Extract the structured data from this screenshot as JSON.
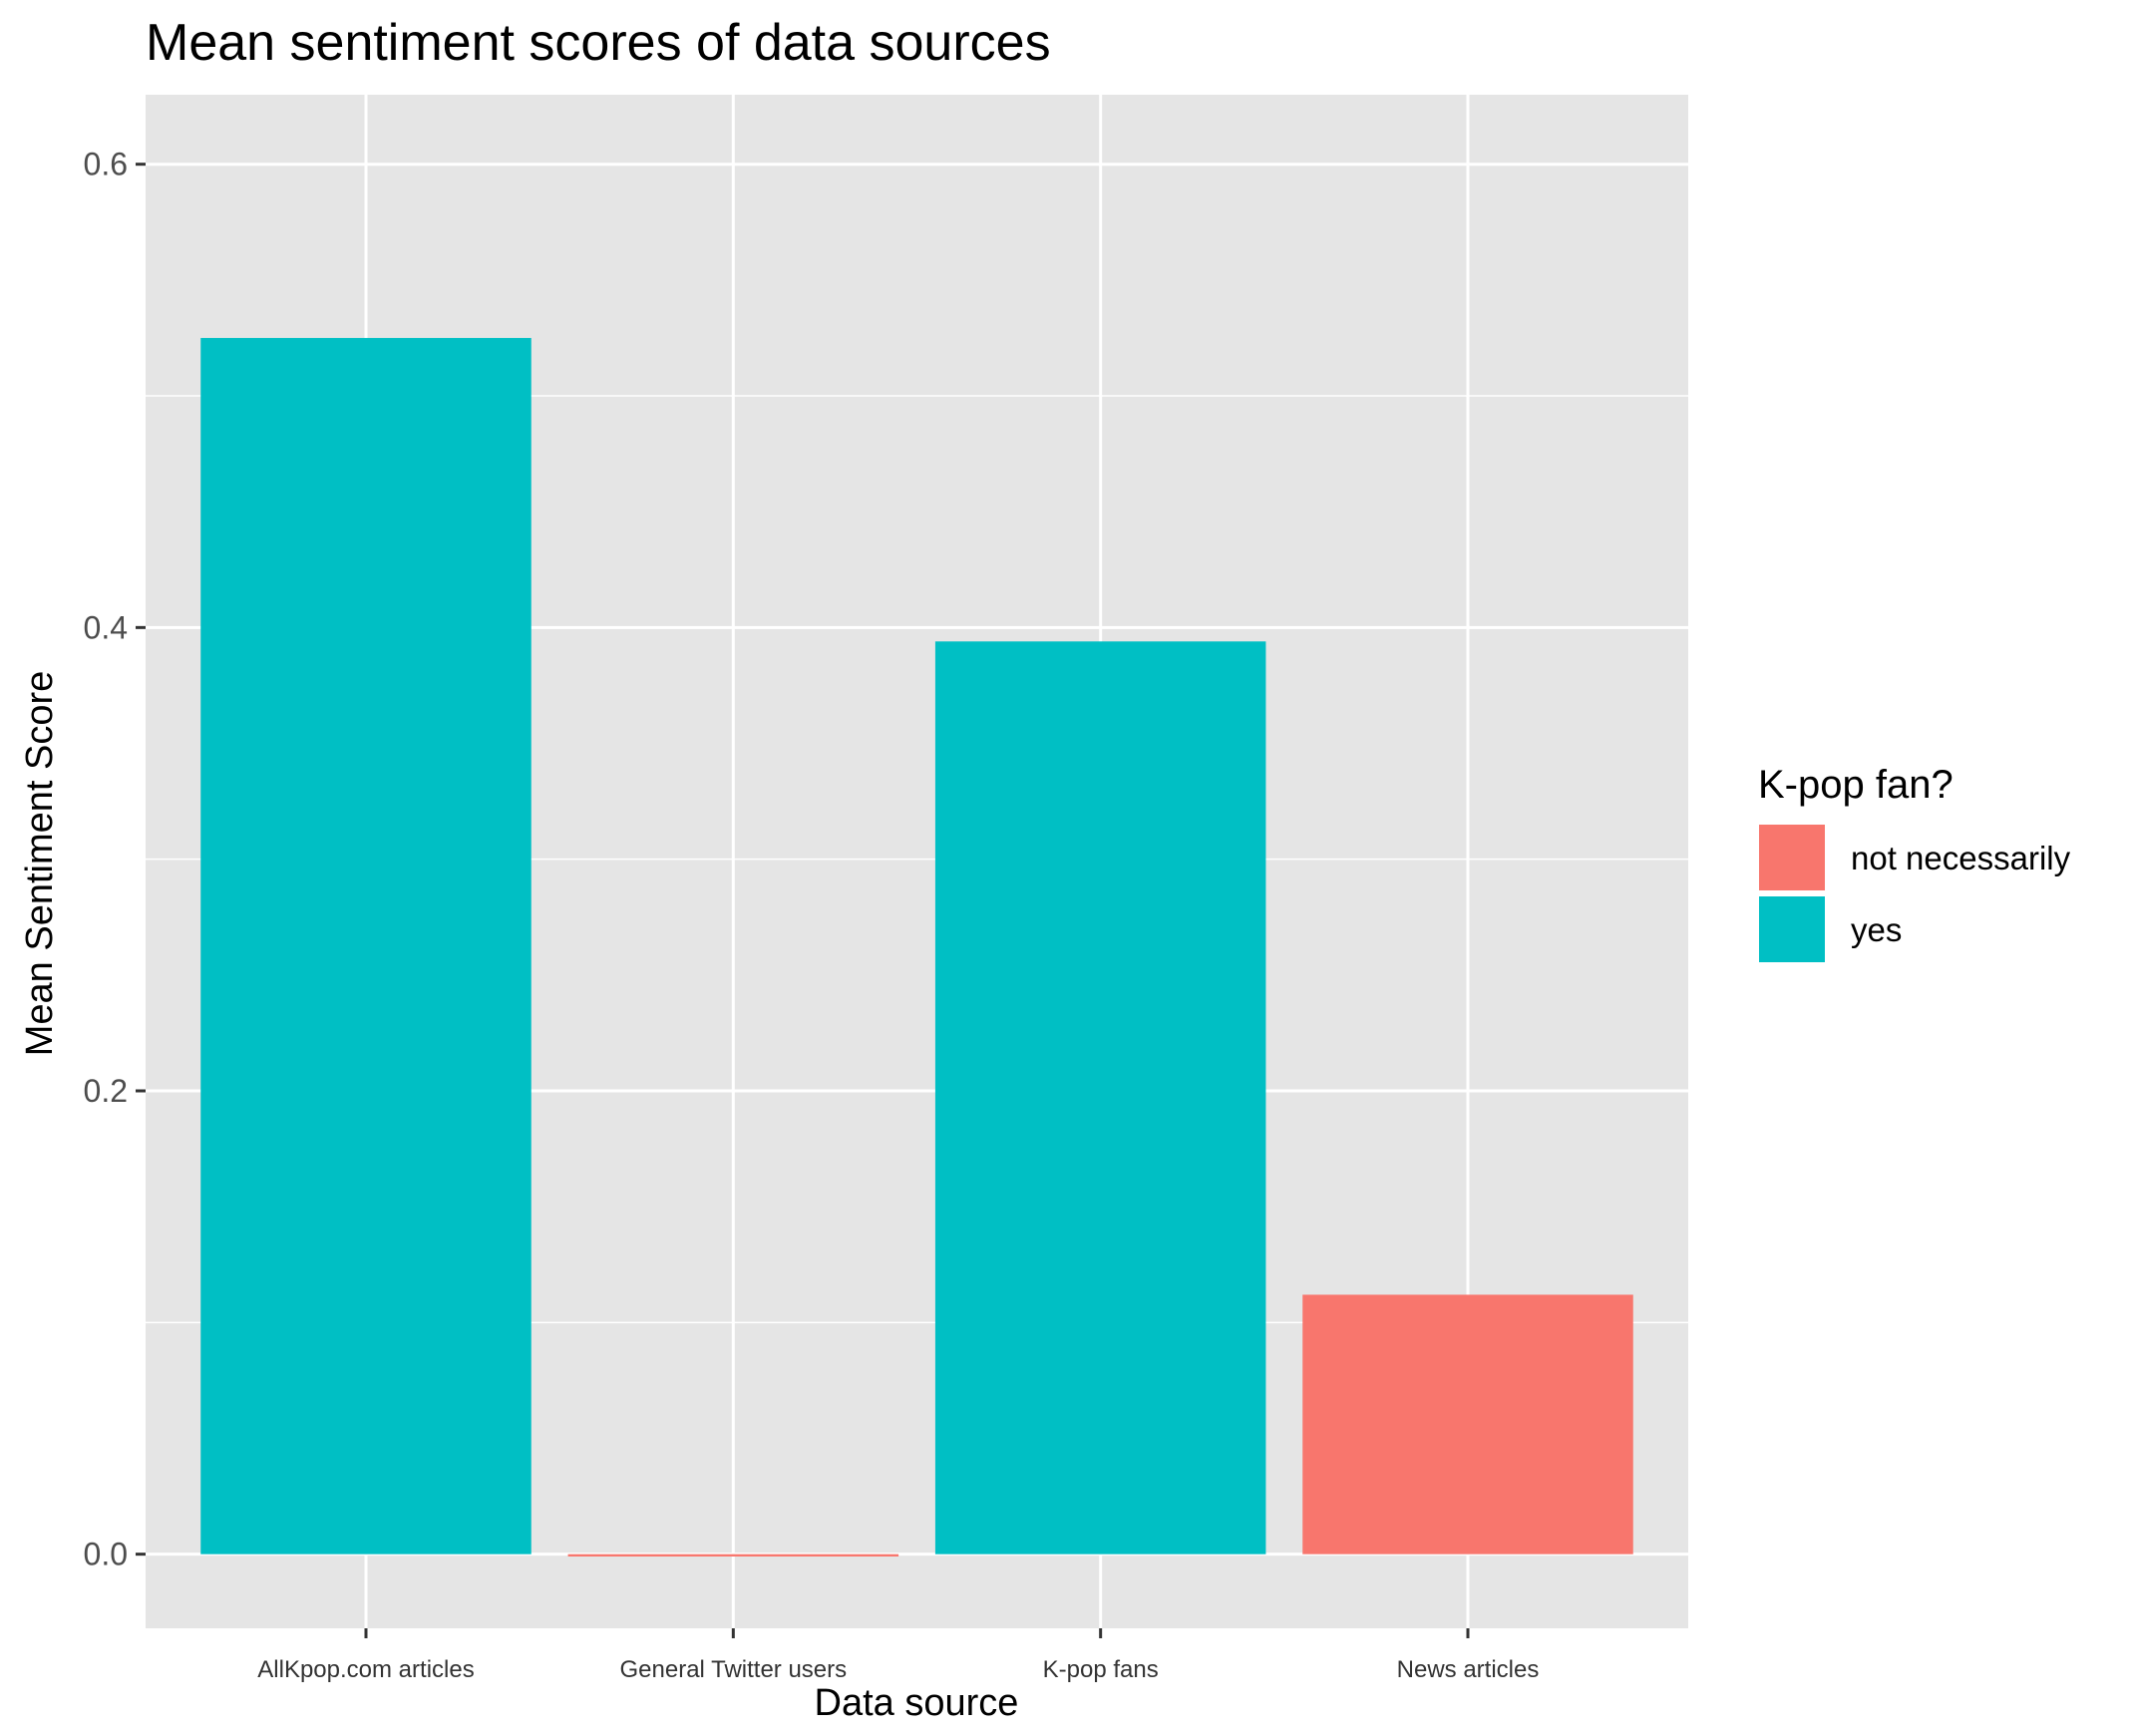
{
  "chart_data": {
    "type": "bar",
    "title": "Mean sentiment scores of data sources",
    "xlabel": "Data source",
    "ylabel": "Mean Sentiment Score",
    "categories": [
      "AllKpop.com articles",
      "General Twitter users",
      "K-pop fans",
      "News articles"
    ],
    "values": [
      0.525,
      -0.001,
      0.394,
      0.112
    ],
    "fill_group": [
      "yes",
      "not necessarily",
      "yes",
      "not necessarily"
    ],
    "ylim": [
      -0.032,
      0.63
    ],
    "y_ticks": [
      0.0,
      0.2,
      0.4,
      0.6
    ],
    "y_tick_labels": [
      "0.0",
      "0.2",
      "0.4",
      "0.6"
    ],
    "grid": true,
    "legend": {
      "title": "K-pop fan?",
      "position": "right",
      "entries": [
        {
          "label": "not necessarily",
          "color": "#F8766D"
        },
        {
          "label": "yes",
          "color": "#00BFC4"
        }
      ]
    },
    "colors": {
      "panel_background": "#E5E5E5",
      "grid_line": "#FFFFFF",
      "not necessarily": "#F8766D",
      "yes": "#00BFC4"
    }
  }
}
